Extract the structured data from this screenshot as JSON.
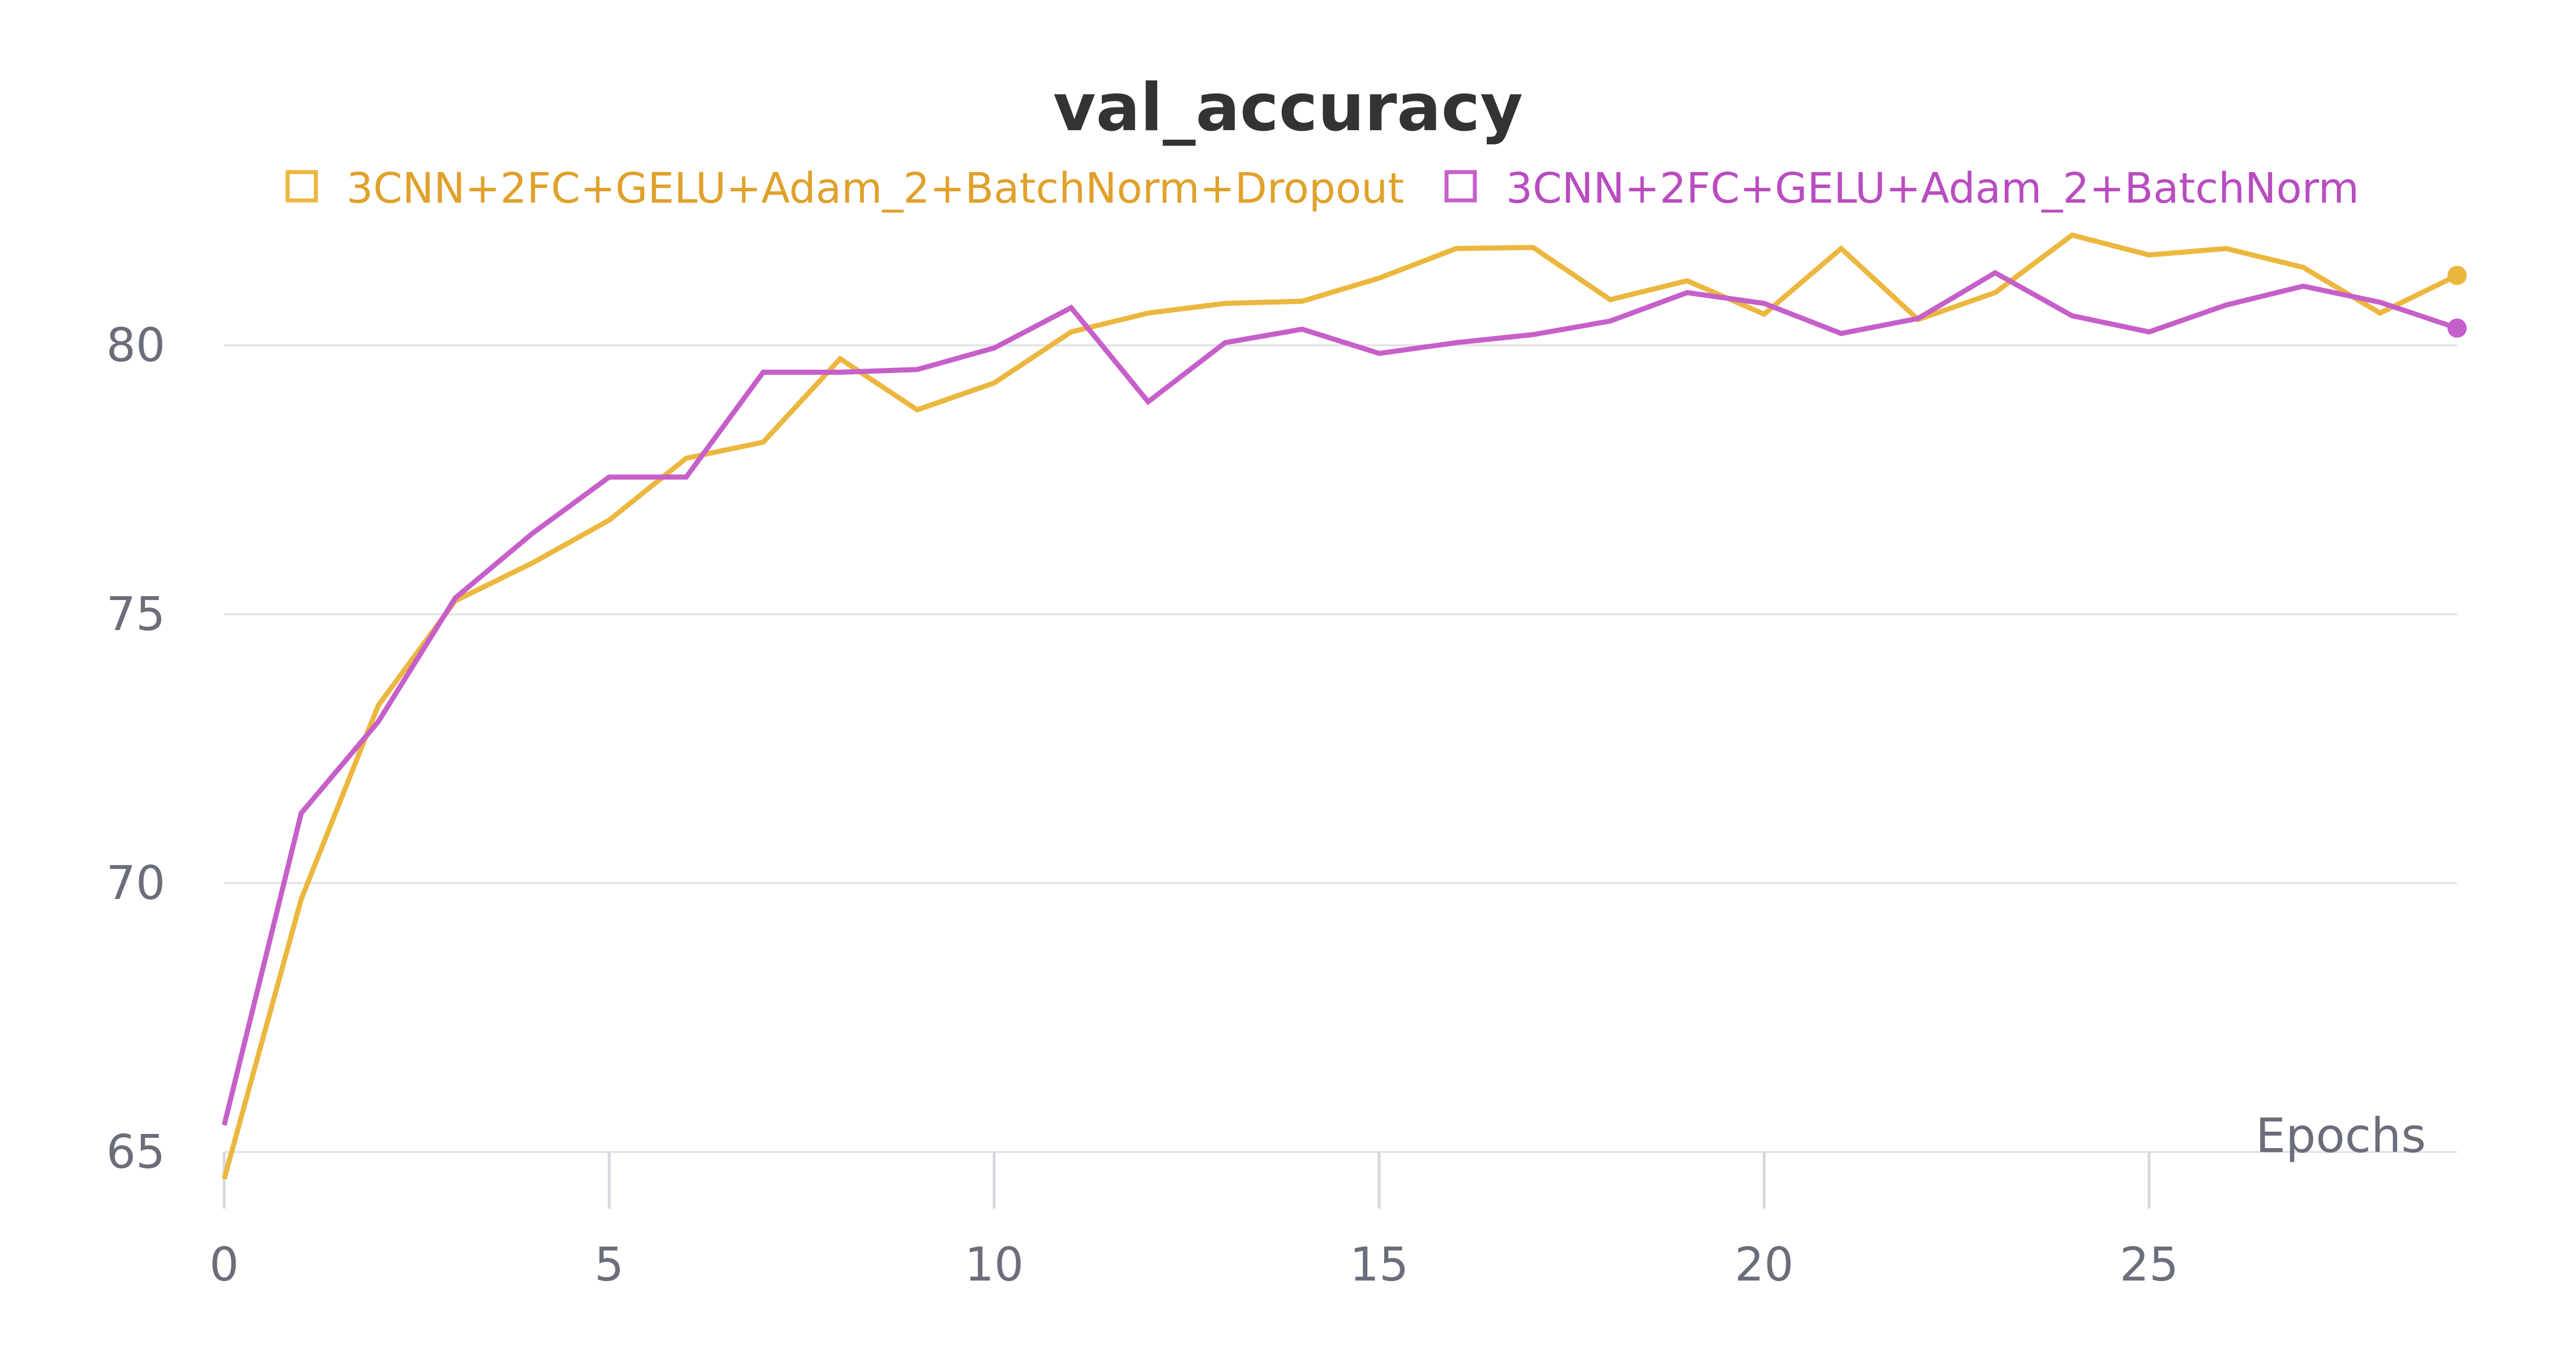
{
  "chart_data": {
    "type": "line",
    "title": "val_accuracy",
    "xlabel": "Epochs",
    "ylabel": "",
    "xlim": [
      0,
      29
    ],
    "ylim": [
      64.5,
      82.5
    ],
    "x_ticks": [
      0,
      5,
      10,
      15,
      20,
      25
    ],
    "y_ticks": [
      65,
      70,
      75,
      80
    ],
    "grid": "horizontal",
    "legend_position": "top-center",
    "x": [
      0,
      1,
      2,
      3,
      4,
      5,
      6,
      7,
      8,
      9,
      10,
      11,
      12,
      13,
      14,
      15,
      16,
      17,
      18,
      19,
      20,
      21,
      22,
      23,
      24,
      25,
      26,
      27,
      28,
      29
    ],
    "series": [
      {
        "name": "3CNN+2FC+GELU+Adam_2+BatchNorm+Dropout",
        "color": "#ecb73e",
        "legend_text_color": "#e0a12b",
        "values": [
          64.5,
          69.7,
          73.3,
          75.25,
          75.95,
          76.75,
          77.9,
          78.2,
          79.75,
          78.8,
          79.3,
          80.25,
          80.6,
          80.78,
          80.82,
          81.25,
          81.8,
          81.82,
          80.85,
          81.2,
          80.58,
          81.8,
          80.48,
          80.98,
          82.05,
          81.68,
          81.8,
          81.45,
          80.6,
          81.3
        ]
      },
      {
        "name": "3CNN+2FC+GELU+Adam_2+BatchNorm",
        "color": "#c65fc9",
        "legend_text_color": "#b94cc0",
        "values": [
          65.5,
          71.3,
          73.0,
          75.3,
          76.5,
          77.55,
          77.55,
          79.5,
          79.5,
          79.55,
          79.95,
          80.7,
          78.95,
          80.05,
          80.3,
          79.85,
          80.05,
          80.2,
          80.45,
          80.98,
          80.78,
          80.22,
          80.5,
          81.35,
          80.55,
          80.25,
          80.75,
          81.1,
          80.8,
          80.32
        ]
      }
    ]
  }
}
